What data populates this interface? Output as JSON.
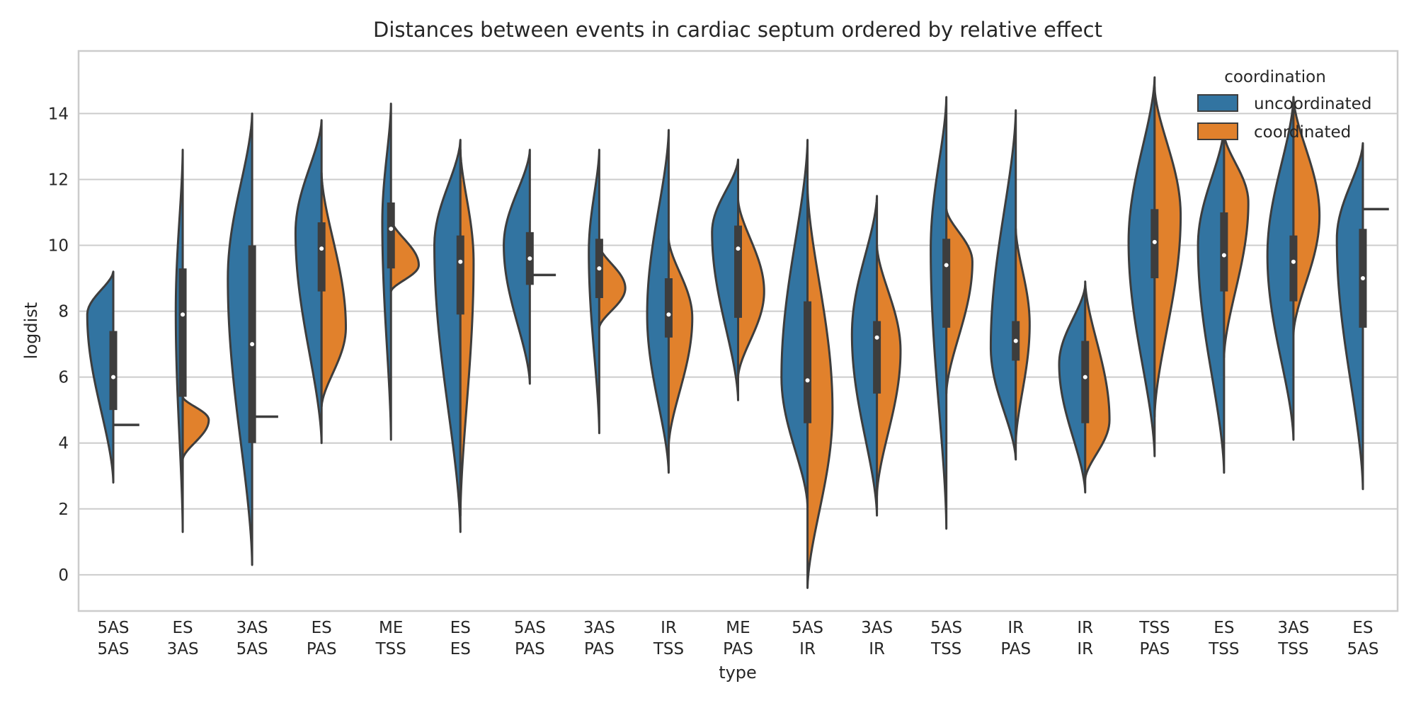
{
  "chart_data": {
    "type": "violin",
    "title": "Distances between events in cardiac septum ordered by relative effect",
    "xlabel": "type",
    "ylabel": "logdist",
    "ylim": [
      -1.1,
      15.9
    ],
    "yticks": [
      "0",
      "2",
      "4",
      "6",
      "8",
      "10",
      "12",
      "14"
    ],
    "grid": true,
    "legend": {
      "title": "coordination",
      "placement": "top-right",
      "entries": [
        "uncoordinated",
        "coordinated"
      ]
    },
    "colors": {
      "uncoordinated": "#3274a1",
      "coordinated": "#e1812c",
      "inner": "#3d3d3d",
      "grid": "#cccccc"
    },
    "categories": [
      {
        "top": "5AS",
        "bottom": "5AS",
        "left": {
          "min": 2.8,
          "max": 9.2,
          "median": 6.0,
          "q1": 5.0,
          "q3": 7.4,
          "peak": 7.9,
          "width": 0.75
        },
        "right": {
          "line": 4.55
        }
      },
      {
        "top": "ES",
        "bottom": "3AS",
        "left": {
          "min": 1.3,
          "max": 12.9,
          "median": 7.9,
          "q1": 5.4,
          "q3": 9.3,
          "peak": 8.0,
          "width": 0.2
        },
        "right": {
          "min": 3.5,
          "max": 5.4,
          "median": 4.7,
          "q1": 4.3,
          "q3": 5.1,
          "peak": 4.7,
          "width": 0.75
        }
      },
      {
        "top": "3AS",
        "bottom": "5AS",
        "left": {
          "min": 0.3,
          "max": 14.0,
          "median": 7.0,
          "q1": 4.0,
          "q3": 10.0,
          "peak": 9.0,
          "width": 0.7
        },
        "right": {
          "line": 4.8
        }
      },
      {
        "top": "ES",
        "bottom": "PAS",
        "left": {
          "min": 4.0,
          "max": 13.8,
          "median": 9.9,
          "q1": 8.6,
          "q3": 10.7,
          "peak": 10.4,
          "width": 0.75
        },
        "right": {
          "min": 5.1,
          "max": 12.2,
          "median": 9.9,
          "q1": 8.6,
          "q3": 10.7,
          "peak": 7.5,
          "width": 0.7
        }
      },
      {
        "top": "ME",
        "bottom": "TSS",
        "left": {
          "min": 4.1,
          "max": 14.3,
          "median": 10.5,
          "q1": 9.3,
          "q3": 11.3,
          "peak": 10.7,
          "width": 0.25
        },
        "right": {
          "min": 8.6,
          "max": 10.8,
          "median": 10.5,
          "q1": 9.3,
          "q3": 11.3,
          "peak": 9.4,
          "width": 0.8
        }
      },
      {
        "top": "ES",
        "bottom": "ES",
        "left": {
          "min": 1.3,
          "max": 13.2,
          "median": 9.5,
          "q1": 7.9,
          "q3": 10.3,
          "peak": 10.0,
          "width": 0.75
        },
        "right": {
          "min": 1.8,
          "max": 12.9,
          "median": 9.5,
          "q1": 7.9,
          "q3": 10.3,
          "peak": 9.5,
          "width": 0.38
        }
      },
      {
        "top": "5AS",
        "bottom": "PAS",
        "left": {
          "min": 5.8,
          "max": 12.9,
          "median": 9.6,
          "q1": 8.8,
          "q3": 10.4,
          "peak": 10.0,
          "width": 0.75
        },
        "right": {
          "line": 9.1
        }
      },
      {
        "top": "3AS",
        "bottom": "PAS",
        "left": {
          "min": 4.3,
          "max": 12.9,
          "median": 9.3,
          "q1": 8.4,
          "q3": 10.2,
          "peak": 9.8,
          "width": 0.3
        },
        "right": {
          "min": 7.5,
          "max": 10.0,
          "median": 9.3,
          "q1": 8.4,
          "q3": 10.2,
          "peak": 8.7,
          "width": 0.75
        }
      },
      {
        "top": "IR",
        "bottom": "TSS",
        "left": {
          "min": 3.1,
          "max": 13.5,
          "median": 7.9,
          "q1": 7.2,
          "q3": 9.0,
          "peak": 7.9,
          "width": 0.62
        },
        "right": {
          "min": 3.9,
          "max": 10.2,
          "median": 7.9,
          "q1": 7.2,
          "q3": 9.0,
          "peak": 7.8,
          "width": 0.68
        }
      },
      {
        "top": "ME",
        "bottom": "PAS",
        "left": {
          "min": 5.3,
          "max": 12.6,
          "median": 9.9,
          "q1": 7.8,
          "q3": 10.6,
          "peak": 10.4,
          "width": 0.75
        },
        "right": {
          "min": 6.0,
          "max": 11.4,
          "median": 9.9,
          "q1": 7.8,
          "q3": 10.6,
          "peak": 8.6,
          "width": 0.75
        }
      },
      {
        "top": "5AS",
        "bottom": "IR",
        "left": {
          "min": 2.1,
          "max": 13.2,
          "median": 5.9,
          "q1": 4.6,
          "q3": 8.3,
          "peak": 6.0,
          "width": 0.75
        },
        "right": {
          "min": -0.4,
          "max": 11.8,
          "median": 5.9,
          "q1": 4.6,
          "q3": 8.3,
          "peak": 5.0,
          "width": 0.72
        }
      },
      {
        "top": "3AS",
        "bottom": "IR",
        "left": {
          "min": 1.8,
          "max": 11.5,
          "median": 7.2,
          "q1": 5.5,
          "q3": 7.7,
          "peak": 7.3,
          "width": 0.72
        },
        "right": {
          "min": 2.4,
          "max": 10.0,
          "median": 7.2,
          "q1": 5.5,
          "q3": 7.7,
          "peak": 6.8,
          "width": 0.68
        }
      },
      {
        "top": "5AS",
        "bottom": "TSS",
        "left": {
          "min": 1.4,
          "max": 14.5,
          "median": 9.4,
          "q1": 7.5,
          "q3": 10.2,
          "peak": 9.9,
          "width": 0.45
        },
        "right": {
          "min": 5.5,
          "max": 11.1,
          "median": 9.4,
          "q1": 7.5,
          "q3": 10.2,
          "peak": 9.5,
          "width": 0.75
        }
      },
      {
        "top": "IR",
        "bottom": "PAS",
        "left": {
          "min": 3.5,
          "max": 14.1,
          "median": 7.1,
          "q1": 6.5,
          "q3": 7.7,
          "peak": 6.9,
          "width": 0.72
        },
        "right": {
          "min": 4.0,
          "max": 10.5,
          "median": 7.1,
          "q1": 6.5,
          "q3": 7.7,
          "peak": 7.6,
          "width": 0.4
        }
      },
      {
        "top": "IR",
        "bottom": "IR",
        "left": {
          "min": 2.5,
          "max": 8.8,
          "median": 6.0,
          "q1": 4.6,
          "q3": 7.1,
          "peak": 6.4,
          "width": 0.75
        },
        "right": {
          "min": 2.9,
          "max": 8.9,
          "median": 6.0,
          "q1": 4.6,
          "q3": 7.1,
          "peak": 4.7,
          "width": 0.7
        }
      },
      {
        "top": "TSS",
        "bottom": "PAS",
        "left": {
          "min": 3.6,
          "max": 15.1,
          "median": 10.1,
          "q1": 9.0,
          "q3": 11.1,
          "peak": 10.1,
          "width": 0.75
        },
        "right": {
          "min": 4.8,
          "max": 14.8,
          "median": 10.1,
          "q1": 9.0,
          "q3": 11.1,
          "peak": 10.9,
          "width": 0.75
        }
      },
      {
        "top": "ES",
        "bottom": "TSS",
        "left": {
          "min": 3.1,
          "max": 13.6,
          "median": 9.7,
          "q1": 8.6,
          "q3": 11.0,
          "peak": 10.0,
          "width": 0.75
        },
        "right": {
          "min": 6.6,
          "max": 13.4,
          "median": 9.7,
          "q1": 8.6,
          "q3": 11.0,
          "peak": 11.3,
          "width": 0.7
        }
      },
      {
        "top": "3AS",
        "bottom": "TSS",
        "left": {
          "min": 4.1,
          "max": 14.5,
          "median": 9.5,
          "q1": 8.3,
          "q3": 10.3,
          "peak": 9.7,
          "width": 0.75
        },
        "right": {
          "min": 7.3,
          "max": 14.5,
          "median": 9.5,
          "q1": 8.3,
          "q3": 10.3,
          "peak": 10.9,
          "width": 0.75
        }
      },
      {
        "top": "ES",
        "bottom": "5AS",
        "left": {
          "min": 2.6,
          "max": 13.1,
          "median": 9.0,
          "q1": 7.5,
          "q3": 10.5,
          "peak": 10.2,
          "width": 0.75
        },
        "right": {
          "line": 11.1
        }
      }
    ]
  }
}
